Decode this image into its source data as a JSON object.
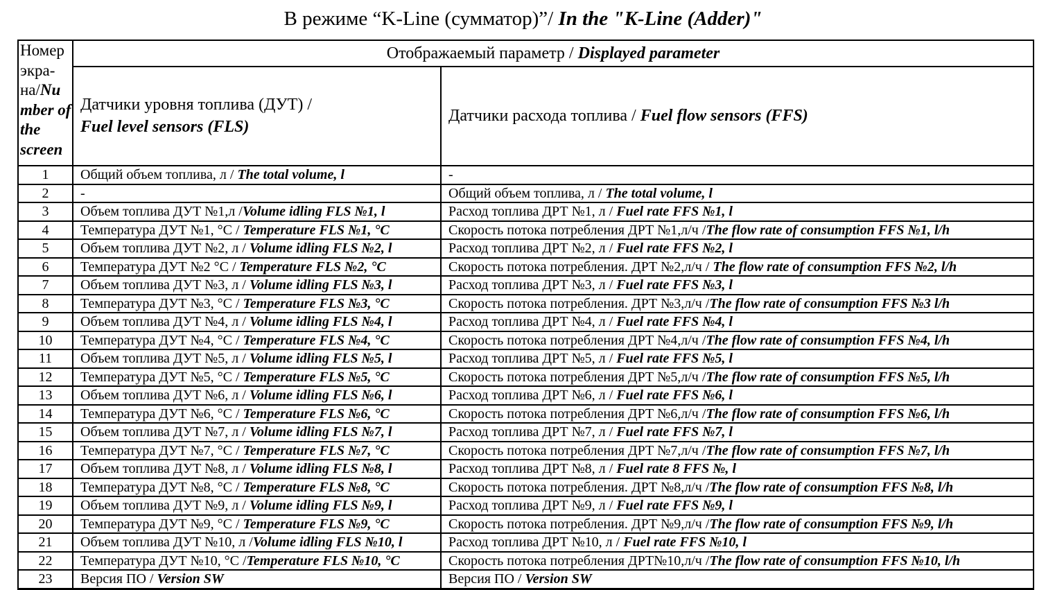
{
  "title": {
    "ru": "В режиме “K-Line (сумматор)”/ ",
    "en": "In the \"K-Line (Adder)\""
  },
  "table": {
    "screen_col_header": {
      "ru": "Номер экра-на/",
      "en": "Number of the screen"
    },
    "displayed_param_header": {
      "ru": "Отображаемый параметр / ",
      "en": "Displayed parameter"
    },
    "fls_header": {
      "ru": "Датчики уровня топлива (ДУТ) / ",
      "en": "Fuel level sensors (FLS)"
    },
    "ffs_header": {
      "ru": "Датчики расхода топлива / ",
      "en": "Fuel flow sensors (FFS)"
    },
    "rows": [
      {
        "num": "1",
        "fls_ru": "Общий объем топлива, л / ",
        "fls_en": "The total volume, l",
        "ffs_ru": "-",
        "ffs_en": ""
      },
      {
        "num": "2",
        "fls_ru": "-",
        "fls_en": "",
        "ffs_ru": "Общий объем топлива, л / ",
        "ffs_en": "The total volume, l"
      },
      {
        "num": "3",
        "fls_ru": "Объем топлива ДУТ №1,л /",
        "fls_en": "Volume idling FLS №1, l",
        "ffs_ru": "Расход топлива ДРТ №1, л / ",
        "ffs_en": "Fuel rate FFS №1, l"
      },
      {
        "num": "4",
        "fls_ru": "Температура ДУТ №1, °С  / ",
        "fls_en": "Temperature FLS №1, °C",
        "ffs_ru": "Скорость потока потребления ДРТ №1,л/ч /",
        "ffs_en": "The flow rate of consumption FFS №1, l/h"
      },
      {
        "num": "5",
        "fls_ru": "Объем топлива ДУТ №2, л / ",
        "fls_en": "Volume idling FLS №2, l",
        "ffs_ru": "Расход топлива ДРТ №2, л / ",
        "ffs_en": "Fuel rate FFS №2, l"
      },
      {
        "num": "6",
        "fls_ru": "Температура ДУТ №2 °С / ",
        "fls_en": "Temperature FLS №2, °C",
        "ffs_ru": "Скорость потока потребления. ДРТ №2,л/ч / ",
        "ffs_en": "The flow rate of consumption FFS №2, l/h"
      },
      {
        "num": "7",
        "fls_ru": "Объем топлива ДУТ №3, л / ",
        "fls_en": "Volume idling FLS №3, l",
        "ffs_ru": "Расход топлива ДРТ №3, л / ",
        "ffs_en": "Fuel rate FFS №3, l"
      },
      {
        "num": "8",
        "fls_ru": "Температура ДУТ №3, °С / ",
        "fls_en": "Temperature FLS №3, °C",
        "ffs_ru": "Скорость потока потребления. ДРТ №3,л/ч /",
        "ffs_en": "The flow rate of consumption FFS №3 l/h"
      },
      {
        "num": "9",
        "fls_ru": "Объем топлива ДУТ №4, л / ",
        "fls_en": "Volume idling FLS №4, l",
        "ffs_ru": "Расход топлива ДРТ №4, л / ",
        "ffs_en": "Fuel rate FFS №4, l"
      },
      {
        "num": "10",
        "fls_ru": "Температура ДУТ №4, °С / ",
        "fls_en": "Temperature FLS №4, °C",
        "ffs_ru": "Скорость потока потребления ДРТ №4,л/ч /",
        "ffs_en": "The flow rate of consumption FFS №4, l/h"
      },
      {
        "num": "11",
        "fls_ru": "Объем топлива ДУТ №5, л / ",
        "fls_en": "Volume idling FLS №5, l",
        "ffs_ru": "Расход топлива ДРТ №5, л / ",
        "ffs_en": "Fuel rate FFS №5, l"
      },
      {
        "num": "12",
        "fls_ru": "Температура ДУТ №5, °С / ",
        "fls_en": "Temperature FLS №5, °C",
        "ffs_ru": "Скорость потока потребления ДРТ №5,л/ч /",
        "ffs_en": "The flow rate of consumption FFS №5, l/h"
      },
      {
        "num": "13",
        "fls_ru": "Объем топлива ДУТ №6, л / ",
        "fls_en": "Volume idling FLS №6, l",
        "ffs_ru": "Расход топлива ДРТ №6, л / ",
        "ffs_en": "Fuel rate FFS №6, l"
      },
      {
        "num": "14",
        "fls_ru": "Температура ДУТ №6, °С / ",
        "fls_en": "Temperature FLS №6, °C",
        "ffs_ru": "Скорость потока потребления ДРТ №6,л/ч /",
        "ffs_en": "The flow rate of consumption FFS №6, l/h"
      },
      {
        "num": "15",
        "fls_ru": "Объем топлива ДУТ №7, л / ",
        "fls_en": "Volume idling FLS №7, l",
        "ffs_ru": "Расход топлива ДРТ №7, л / ",
        "ffs_en": "Fuel rate FFS №7, l"
      },
      {
        "num": "16",
        "fls_ru": "Температура ДУТ №7, °С / ",
        "fls_en": "Temperature FLS №7, °C",
        "ffs_ru": "Скорость потока потребления ДРТ №7,л/ч /",
        "ffs_en": "The flow rate of consumption FFS №7, l/h"
      },
      {
        "num": "17",
        "fls_ru": "Объем топлива ДУТ №8, л / ",
        "fls_en": "Volume idling FLS №8, l",
        "ffs_ru": "Расход топлива ДРТ №8, л / ",
        "ffs_en": "Fuel rate 8 FFS №, l"
      },
      {
        "num": "18",
        "fls_ru": "Температура ДУТ №8, °С / ",
        "fls_en": "Temperature FLS №8, °C",
        "ffs_ru": "Скорость потока потребления. ДРТ №8,л/ч /",
        "ffs_en": "The flow rate of consumption FFS №8, l/h"
      },
      {
        "num": "19",
        "fls_ru": "Объем топлива ДУТ №9, л / ",
        "fls_en": "Volume idling FLS №9, l",
        "ffs_ru": "Расход топлива ДРТ №9, л / ",
        "ffs_en": "Fuel rate FFS №9, l"
      },
      {
        "num": "20",
        "fls_ru": "Температура ДУТ №9, °С / ",
        "fls_en": "Temperature FLS №9, °C",
        "ffs_ru": "Скорость потока потребления. ДРТ №9,л/ч /",
        "ffs_en": "The flow rate of consumption FFS №9, l/h"
      },
      {
        "num": "21",
        "fls_ru": "Объем топлива ДУТ №10, л /",
        "fls_en": "Volume idling FLS №10, l",
        "ffs_ru": "Расход топлива ДРТ №10, л / ",
        "ffs_en": "Fuel rate FFS №10, l"
      },
      {
        "num": "22",
        "fls_ru": "Температура ДУТ №10, °С /",
        "fls_en": "Temperature FLS №10, °C",
        "ffs_ru": "Скорость потока потребления ДРТ№10,л/ч /",
        "ffs_en": "The flow rate of consumption FFS №10, l/h"
      },
      {
        "num": "23",
        "fls_ru": "Версия ПО / ",
        "fls_en": "Version SW",
        "ffs_ru": "Версия ПО / ",
        "ffs_en": "Version SW"
      }
    ]
  }
}
